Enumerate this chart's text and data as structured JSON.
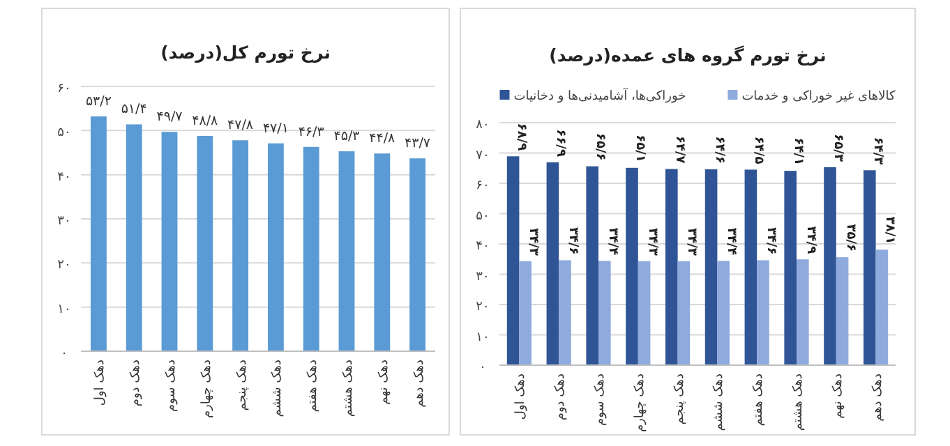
{
  "chart_data": [
    {
      "type": "bar",
      "title": "نرخ تورم کل(درصد)",
      "categories": [
        "دهک اول",
        "دهک دوم",
        "دهک سوم",
        "دهک چهارم",
        "دهک پنجم",
        "دهک ششم",
        "دهک هفتم",
        "دهک هشتم",
        "دهک نهم",
        "دهک دهم"
      ],
      "values": [
        53.2,
        51.4,
        49.7,
        48.8,
        47.8,
        47.1,
        46.3,
        45.3,
        44.8,
        43.7
      ],
      "value_labels": [
        "۵۳/۲",
        "۵۱/۴",
        "۴۹/۷",
        "۴۸/۸",
        "۴۷/۸",
        "۴۷/۱",
        "۴۶/۳",
        "۴۵/۳",
        "۴۴/۸",
        "۴۳/۷"
      ],
      "color": "#5b9bd5",
      "ylim": [
        0,
        60
      ],
      "yticks": [
        {
          "value": 0,
          "label": "۰"
        },
        {
          "value": 10,
          "label": "۱۰"
        },
        {
          "value": 20,
          "label": "۲۰"
        },
        {
          "value": 30,
          "label": "۳۰"
        },
        {
          "value": 40,
          "label": "۴۰"
        },
        {
          "value": 50,
          "label": "۵۰"
        },
        {
          "value": 60,
          "label": "۶۰"
        }
      ],
      "grid": "y"
    },
    {
      "type": "bar",
      "title": "نرخ تورم گروه های عمده(درصد)",
      "categories": [
        "دهک اول",
        "دهک دوم",
        "دهک سوم",
        "دهک چهارم",
        "دهک پنجم",
        "دهک ششم",
        "دهک هفتم",
        "دهک هشتم",
        "دهک نهم",
        "دهک دهم"
      ],
      "series": [
        {
          "name": "خوراکی‌ها، آشامیدنی‌ها و دخانیات",
          "color": "#2f5597",
          "values": [
            68.9,
            66.9,
            65.6,
            65.1,
            64.7,
            64.6,
            64.5,
            64.1,
            65.3,
            64.3
          ],
          "value_labels": [
            "۶۸/۹",
            "۶۶/۹",
            "۶۵/۶",
            "۶۵/۱",
            "۶۴/۷",
            "۶۴/۶",
            "۶۴/۵",
            "۶۴/۱",
            "۶۵/۳",
            "۶۴/۳"
          ]
        },
        {
          "name": "کالاهای غیر خوراکی و خدمات",
          "color": "#8faadc",
          "values": [
            34.3,
            34.6,
            34.4,
            34.3,
            34.3,
            34.4,
            34.6,
            34.9,
            35.6,
            38.1
          ],
          "value_labels": [
            "۳۴/۳",
            "۳۴/۶",
            "۳۴/۴",
            "۳۴/۳",
            "۳۴/۳",
            "۳۴/۴",
            "۳۴/۶",
            "۳۴/۹",
            "۳۵/۶",
            "۳۸/۱"
          ]
        }
      ],
      "ylim": [
        0,
        80
      ],
      "yticks": [
        {
          "value": 0,
          "label": "۰"
        },
        {
          "value": 10,
          "label": "۱۰"
        },
        {
          "value": 20,
          "label": "۲۰"
        },
        {
          "value": 30,
          "label": "۳۰"
        },
        {
          "value": 40,
          "label": "۴۰"
        },
        {
          "value": 50,
          "label": "۵۰"
        },
        {
          "value": 60,
          "label": "۶۰"
        },
        {
          "value": 70,
          "label": "۷۰"
        },
        {
          "value": 80,
          "label": "۸۰"
        }
      ],
      "grid": "y",
      "legend": "top"
    }
  ]
}
